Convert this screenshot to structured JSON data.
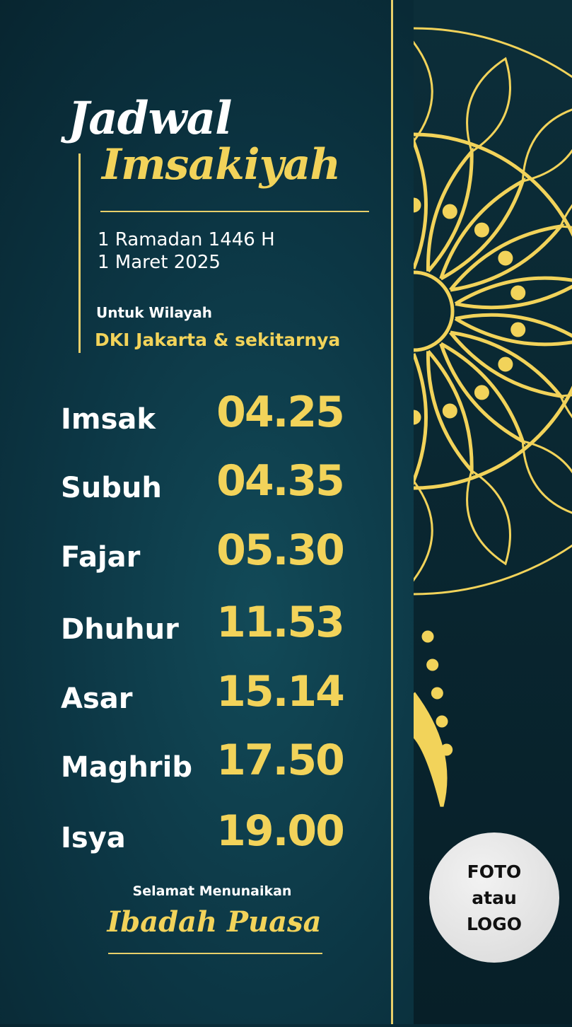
{
  "header": {
    "title_line1": "Jadwal",
    "title_line2": "Imsakiyah",
    "hijri_date": "1 Ramadan 1446 H",
    "gregorian_date": "1 Maret 2025",
    "region_label": "Untuk Wilayah",
    "region": "DKI Jakarta & sekitarnya"
  },
  "schedule": [
    {
      "name": "Imsak",
      "time": "04.25"
    },
    {
      "name": "Subuh",
      "time": "04.35"
    },
    {
      "name": "Fajar",
      "time": "05.30"
    },
    {
      "name": "Dhuhur",
      "time": "11.53"
    },
    {
      "name": "Asar",
      "time": "15.14"
    },
    {
      "name": "Maghrib",
      "time": "17.50"
    },
    {
      "name": "Isya",
      "time": "19.00"
    }
  ],
  "footer": {
    "greeting": "Selamat Menunaikan",
    "greeting_main": "Ibadah Puasa"
  },
  "logo": {
    "line1": "FOTO",
    "line2": "atau",
    "line3": "LOGO"
  },
  "colors": {
    "gold": "#f2d35a",
    "background": "#0c3644",
    "panel": "#071f28"
  },
  "decoration": "gold-mandala-ornament"
}
